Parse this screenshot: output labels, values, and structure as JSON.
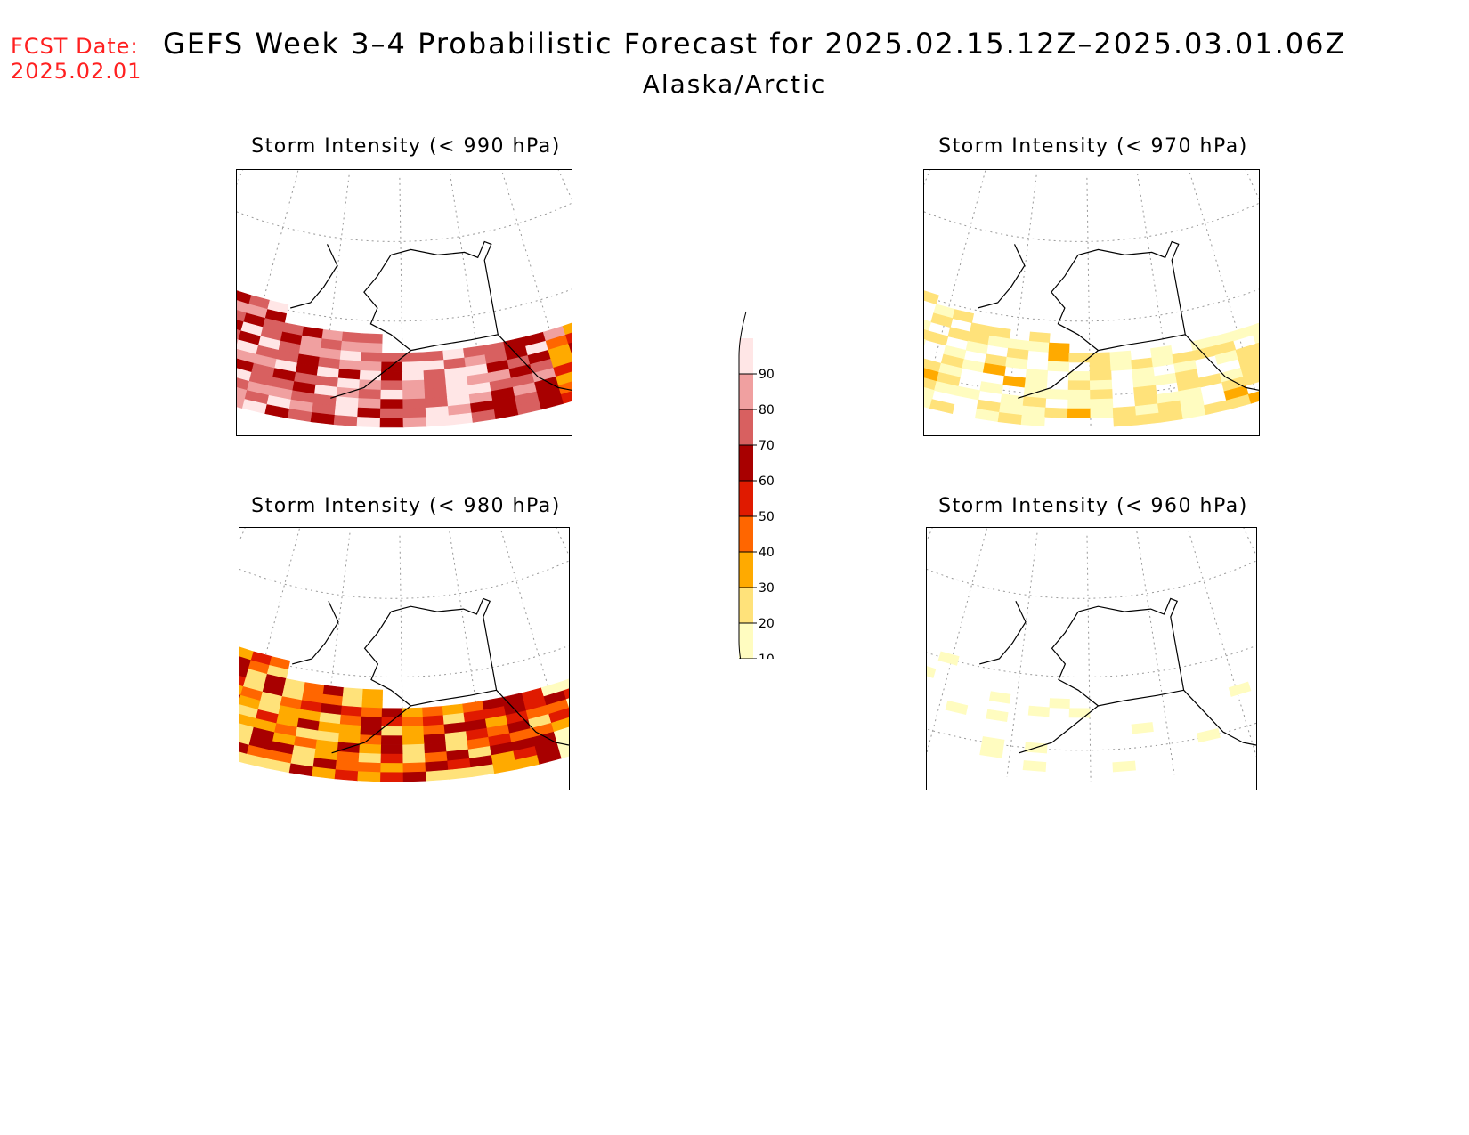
{
  "header": {
    "fcst_label": "FCST Date:",
    "fcst_date": "2025.02.01",
    "title": "GEFS Week 3–4 Probabilistic Forecast for 2025.02.15.12Z–2025.03.01.06Z",
    "region": "Alaska/Arctic"
  },
  "panels": [
    {
      "id": "p990",
      "title": "Storm Intensity (< 990 hPa)",
      "level": "high"
    },
    {
      "id": "p970",
      "title": "Storm Intensity (< 970 hPa)",
      "level": "low"
    },
    {
      "id": "p980",
      "title": "Storm Intensity (< 980 hPa)",
      "level": "mid"
    },
    {
      "id": "p960",
      "title": "Storm Intensity (< 960 hPa)",
      "level": "minimal"
    }
  ],
  "colorbar": {
    "ticks": [
      "10",
      "20",
      "30",
      "40",
      "50",
      "60",
      "70",
      "80",
      "90"
    ],
    "colors": [
      "#fffcc0",
      "#ffe27a",
      "#ffaa00",
      "#ff6600",
      "#e01a00",
      "#a80000",
      "#d86060",
      "#f0a0a0",
      "#ffe6e6"
    ]
  }
}
